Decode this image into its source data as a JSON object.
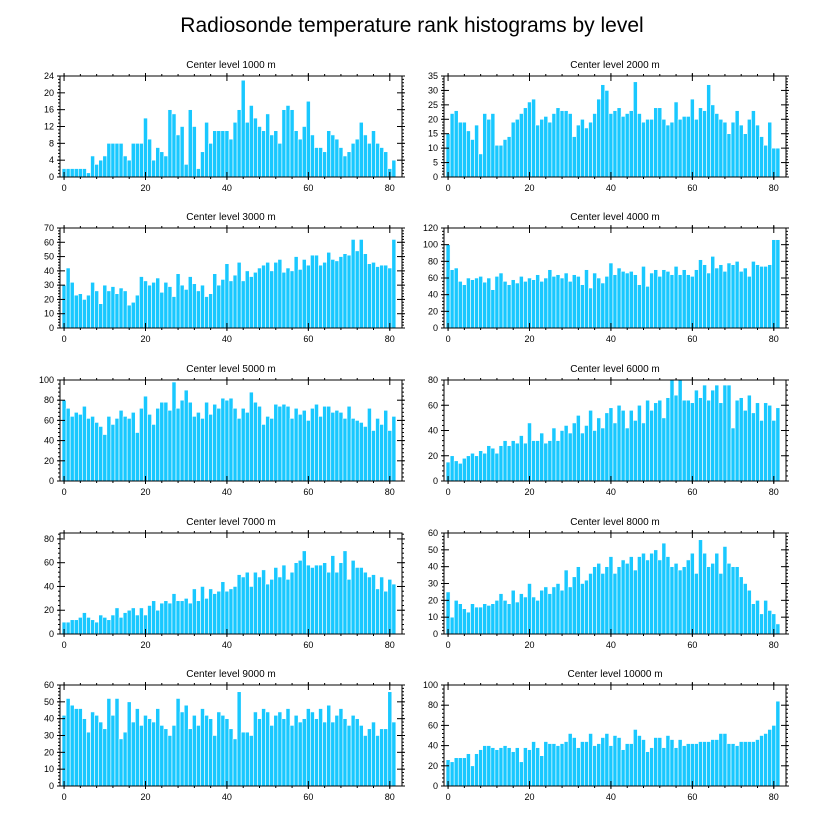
{
  "title": "Radiosonde temperature rank histograms by level",
  "colors": {
    "bar": "#19c8ff",
    "bar_edge": "#ffffff",
    "axis": "#000000"
  },
  "chart_data": [
    {
      "type": "bar",
      "title": "Center level 1000 m",
      "x": {
        "start": 0,
        "count": 82,
        "ticks": [
          0,
          20,
          40,
          60,
          80
        ],
        "range": [
          -1,
          83
        ]
      },
      "ylim": [
        0,
        24
      ],
      "yticks": [
        0,
        4,
        8,
        12,
        16,
        20,
        24
      ],
      "values": [
        2,
        2,
        2,
        2,
        2,
        2,
        1,
        5,
        3,
        4,
        5,
        8,
        8,
        8,
        8,
        5,
        4,
        8,
        8,
        8,
        14,
        9,
        4,
        7,
        6,
        5,
        16,
        15,
        10,
        12,
        3,
        16,
        12,
        2,
        6,
        13,
        8,
        11,
        11,
        11,
        11,
        9,
        13,
        16,
        23,
        13,
        17,
        14,
        12,
        11,
        15,
        10,
        11,
        8,
        16,
        17,
        16,
        11,
        9,
        12,
        18,
        10,
        7,
        7,
        6,
        11,
        10,
        9,
        7,
        5,
        6,
        8,
        9,
        13,
        10,
        8,
        11,
        8,
        7,
        6,
        2,
        4
      ]
    },
    {
      "type": "bar",
      "title": "Center level 2000 m",
      "x": {
        "start": 0,
        "count": 82,
        "ticks": [
          0,
          20,
          40,
          60,
          80
        ],
        "range": [
          -1,
          83
        ]
      },
      "ylim": [
        0,
        35
      ],
      "yticks": [
        0,
        5,
        10,
        15,
        20,
        25,
        30,
        35
      ],
      "values": [
        15,
        22,
        23,
        19,
        19,
        16,
        13,
        18,
        8,
        22,
        20,
        22,
        11,
        11,
        13,
        14,
        19,
        20,
        22,
        24,
        26,
        27,
        18,
        20,
        21,
        19,
        22,
        24,
        23,
        23,
        22,
        14,
        18,
        20,
        17,
        19,
        22,
        27,
        32,
        30,
        22,
        23,
        24,
        21,
        22,
        23,
        33,
        22,
        19,
        20,
        20,
        24,
        24,
        20,
        18,
        19,
        26,
        20,
        21,
        21,
        27,
        20,
        24,
        23,
        32,
        25,
        22,
        20,
        19,
        15,
        19,
        23,
        18,
        15,
        20,
        23,
        18,
        14,
        11,
        19,
        10,
        10
      ]
    },
    {
      "type": "bar",
      "title": "Center level 3000 m",
      "x": {
        "start": 0,
        "count": 82,
        "ticks": [
          0,
          20,
          40,
          60,
          80
        ],
        "range": [
          -1,
          83
        ]
      },
      "ylim": [
        0,
        70
      ],
      "yticks": [
        0,
        10,
        20,
        30,
        40,
        50,
        60,
        70
      ],
      "values": [
        30,
        42,
        32,
        23,
        24,
        20,
        23,
        32,
        26,
        17,
        30,
        26,
        29,
        24,
        28,
        26,
        16,
        18,
        23,
        36,
        33,
        30,
        32,
        35,
        25,
        32,
        29,
        22,
        38,
        30,
        27,
        36,
        31,
        26,
        30,
        22,
        24,
        38,
        30,
        34,
        45,
        33,
        37,
        46,
        33,
        40,
        36,
        39,
        42,
        44,
        46,
        40,
        46,
        48,
        39,
        42,
        40,
        50,
        41,
        48,
        44,
        51,
        51,
        44,
        46,
        53,
        48,
        47,
        50,
        52,
        51,
        62,
        54,
        62,
        52,
        45,
        46,
        43,
        44,
        44,
        42,
        62
      ]
    },
    {
      "type": "bar",
      "title": "Center level 4000 m",
      "x": {
        "start": 0,
        "count": 82,
        "ticks": [
          0,
          20,
          40,
          60,
          80
        ],
        "range": [
          -1,
          83
        ]
      },
      "ylim": [
        0,
        120
      ],
      "yticks": [
        0,
        20,
        40,
        60,
        80,
        100,
        120
      ],
      "values": [
        100,
        70,
        72,
        56,
        52,
        60,
        58,
        60,
        62,
        55,
        60,
        46,
        62,
        66,
        56,
        52,
        58,
        54,
        62,
        56,
        60,
        58,
        64,
        56,
        60,
        70,
        62,
        64,
        60,
        66,
        56,
        64,
        62,
        52,
        70,
        48,
        66,
        60,
        54,
        62,
        78,
        64,
        72,
        68,
        66,
        68,
        64,
        52,
        74,
        50,
        66,
        70,
        62,
        70,
        68,
        64,
        74,
        64,
        70,
        64,
        62,
        70,
        82,
        76,
        66,
        86,
        72,
        76,
        68,
        78,
        76,
        80,
        68,
        72,
        62,
        80,
        76,
        74,
        74,
        76,
        106,
        106
      ]
    },
    {
      "type": "bar",
      "title": "Center level 5000 m",
      "x": {
        "start": 0,
        "count": 82,
        "ticks": [
          0,
          20,
          40,
          60,
          80
        ],
        "range": [
          -1,
          83
        ]
      },
      "ylim": [
        0,
        100
      ],
      "yticks": [
        0,
        20,
        40,
        60,
        80,
        100
      ],
      "values": [
        80,
        72,
        64,
        68,
        66,
        74,
        62,
        64,
        58,
        54,
        46,
        64,
        56,
        62,
        70,
        64,
        62,
        68,
        48,
        72,
        84,
        66,
        56,
        72,
        78,
        78,
        70,
        98,
        72,
        80,
        90,
        78,
        64,
        68,
        62,
        78,
        66,
        76,
        72,
        82,
        80,
        82,
        72,
        62,
        72,
        68,
        88,
        78,
        74,
        56,
        64,
        62,
        76,
        74,
        76,
        74,
        62,
        72,
        66,
        70,
        60,
        72,
        76,
        64,
        74,
        74,
        68,
        70,
        68,
        62,
        74,
        62,
        60,
        58,
        54,
        72,
        50,
        62,
        56,
        70,
        50,
        64
      ]
    },
    {
      "type": "bar",
      "title": "Center level 6000 m",
      "x": {
        "start": 0,
        "count": 82,
        "ticks": [
          0,
          20,
          40,
          60,
          80
        ],
        "range": [
          -1,
          83
        ]
      },
      "ylim": [
        0,
        80
      ],
      "yticks": [
        0,
        20,
        40,
        60,
        80
      ],
      "values": [
        15,
        20,
        16,
        14,
        18,
        20,
        22,
        20,
        24,
        22,
        28,
        26,
        22,
        28,
        32,
        28,
        32,
        30,
        36,
        30,
        46,
        32,
        32,
        38,
        30,
        32,
        42,
        32,
        40,
        44,
        38,
        46,
        52,
        38,
        44,
        56,
        40,
        50,
        42,
        54,
        58,
        46,
        60,
        56,
        42,
        56,
        48,
        60,
        46,
        64,
        56,
        62,
        64,
        50,
        66,
        80,
        68,
        80,
        64,
        64,
        62,
        72,
        66,
        76,
        64,
        72,
        76,
        62,
        76,
        76,
        42,
        64,
        66,
        56,
        68,
        54,
        62,
        48,
        62,
        60,
        48,
        58
      ]
    },
    {
      "type": "bar",
      "title": "Center level 7000 m",
      "x": {
        "start": 0,
        "count": 82,
        "ticks": [
          0,
          20,
          40,
          60,
          80
        ],
        "range": [
          -1,
          83
        ]
      },
      "ylim": [
        0,
        85
      ],
      "yticks": [
        0,
        20,
        40,
        60,
        80
      ],
      "values": [
        10,
        10,
        12,
        12,
        14,
        18,
        14,
        12,
        10,
        16,
        14,
        12,
        16,
        22,
        14,
        18,
        20,
        22,
        16,
        22,
        16,
        24,
        28,
        20,
        26,
        28,
        26,
        34,
        28,
        28,
        30,
        26,
        38,
        28,
        40,
        30,
        38,
        34,
        36,
        44,
        36,
        38,
        40,
        50,
        48,
        52,
        40,
        52,
        48,
        54,
        42,
        46,
        56,
        48,
        58,
        46,
        52,
        60,
        62,
        70,
        58,
        56,
        58,
        58,
        60,
        52,
        66,
        52,
        60,
        70,
        46,
        62,
        56,
        56,
        52,
        48,
        50,
        38,
        48,
        36,
        46,
        42
      ]
    },
    {
      "type": "bar",
      "title": "Center level 8000 m",
      "x": {
        "start": 0,
        "count": 82,
        "ticks": [
          0,
          20,
          40,
          60,
          80
        ],
        "range": [
          -1,
          83
        ]
      },
      "ylim": [
        0,
        60
      ],
      "yticks": [
        0,
        10,
        20,
        30,
        40,
        50,
        60
      ],
      "values": [
        25,
        10,
        20,
        18,
        15,
        13,
        18,
        16,
        16,
        18,
        17,
        18,
        20,
        24,
        20,
        18,
        26,
        19,
        24,
        22,
        30,
        22,
        20,
        26,
        28,
        24,
        28,
        30,
        26,
        38,
        28,
        34,
        40,
        30,
        32,
        36,
        40,
        42,
        36,
        40,
        46,
        36,
        40,
        44,
        42,
        46,
        38,
        46,
        48,
        44,
        48,
        50,
        44,
        54,
        46,
        40,
        42,
        38,
        40,
        44,
        48,
        36,
        56,
        48,
        40,
        42,
        48,
        36,
        52,
        42,
        40,
        40,
        34,
        30,
        26,
        18,
        20,
        12,
        20,
        14,
        12,
        6
      ]
    },
    {
      "type": "bar",
      "title": "Center level 9000 m",
      "x": {
        "start": 0,
        "count": 82,
        "ticks": [
          0,
          20,
          40,
          60,
          80
        ],
        "range": [
          -1,
          83
        ]
      },
      "ylim": [
        0,
        60
      ],
      "yticks": [
        0,
        10,
        20,
        30,
        40,
        50,
        60
      ],
      "values": [
        42,
        52,
        48,
        46,
        46,
        40,
        32,
        44,
        42,
        38,
        34,
        52,
        42,
        52,
        28,
        32,
        50,
        38,
        46,
        36,
        42,
        40,
        38,
        46,
        36,
        34,
        30,
        36,
        52,
        44,
        48,
        34,
        42,
        36,
        46,
        42,
        40,
        30,
        44,
        42,
        40,
        34,
        28,
        56,
        32,
        32,
        30,
        44,
        40,
        46,
        44,
        36,
        42,
        44,
        40,
        46,
        36,
        42,
        38,
        40,
        46,
        44,
        40,
        46,
        38,
        48,
        38,
        42,
        46,
        40,
        36,
        42,
        40,
        36,
        30,
        34,
        38,
        30,
        34,
        34,
        56,
        38
      ]
    },
    {
      "type": "bar",
      "title": "Center level 10000 m",
      "x": {
        "start": 0,
        "count": 82,
        "ticks": [
          0,
          20,
          40,
          60,
          80
        ],
        "range": [
          -1,
          83
        ]
      },
      "ylim": [
        0,
        100
      ],
      "yticks": [
        0,
        20,
        40,
        60,
        80,
        100
      ],
      "values": [
        26,
        24,
        28,
        28,
        28,
        32,
        20,
        32,
        36,
        40,
        40,
        38,
        36,
        38,
        40,
        38,
        34,
        38,
        24,
        38,
        36,
        44,
        38,
        30,
        44,
        42,
        42,
        40,
        42,
        44,
        52,
        48,
        38,
        44,
        44,
        52,
        40,
        42,
        48,
        52,
        40,
        50,
        48,
        36,
        42,
        42,
        56,
        50,
        46,
        34,
        38,
        48,
        48,
        38,
        50,
        46,
        38,
        46,
        40,
        42,
        42,
        42,
        44,
        44,
        44,
        46,
        46,
        52,
        52,
        42,
        42,
        40,
        44,
        44,
        44,
        44,
        46,
        50,
        52,
        56,
        60,
        84
      ]
    }
  ]
}
